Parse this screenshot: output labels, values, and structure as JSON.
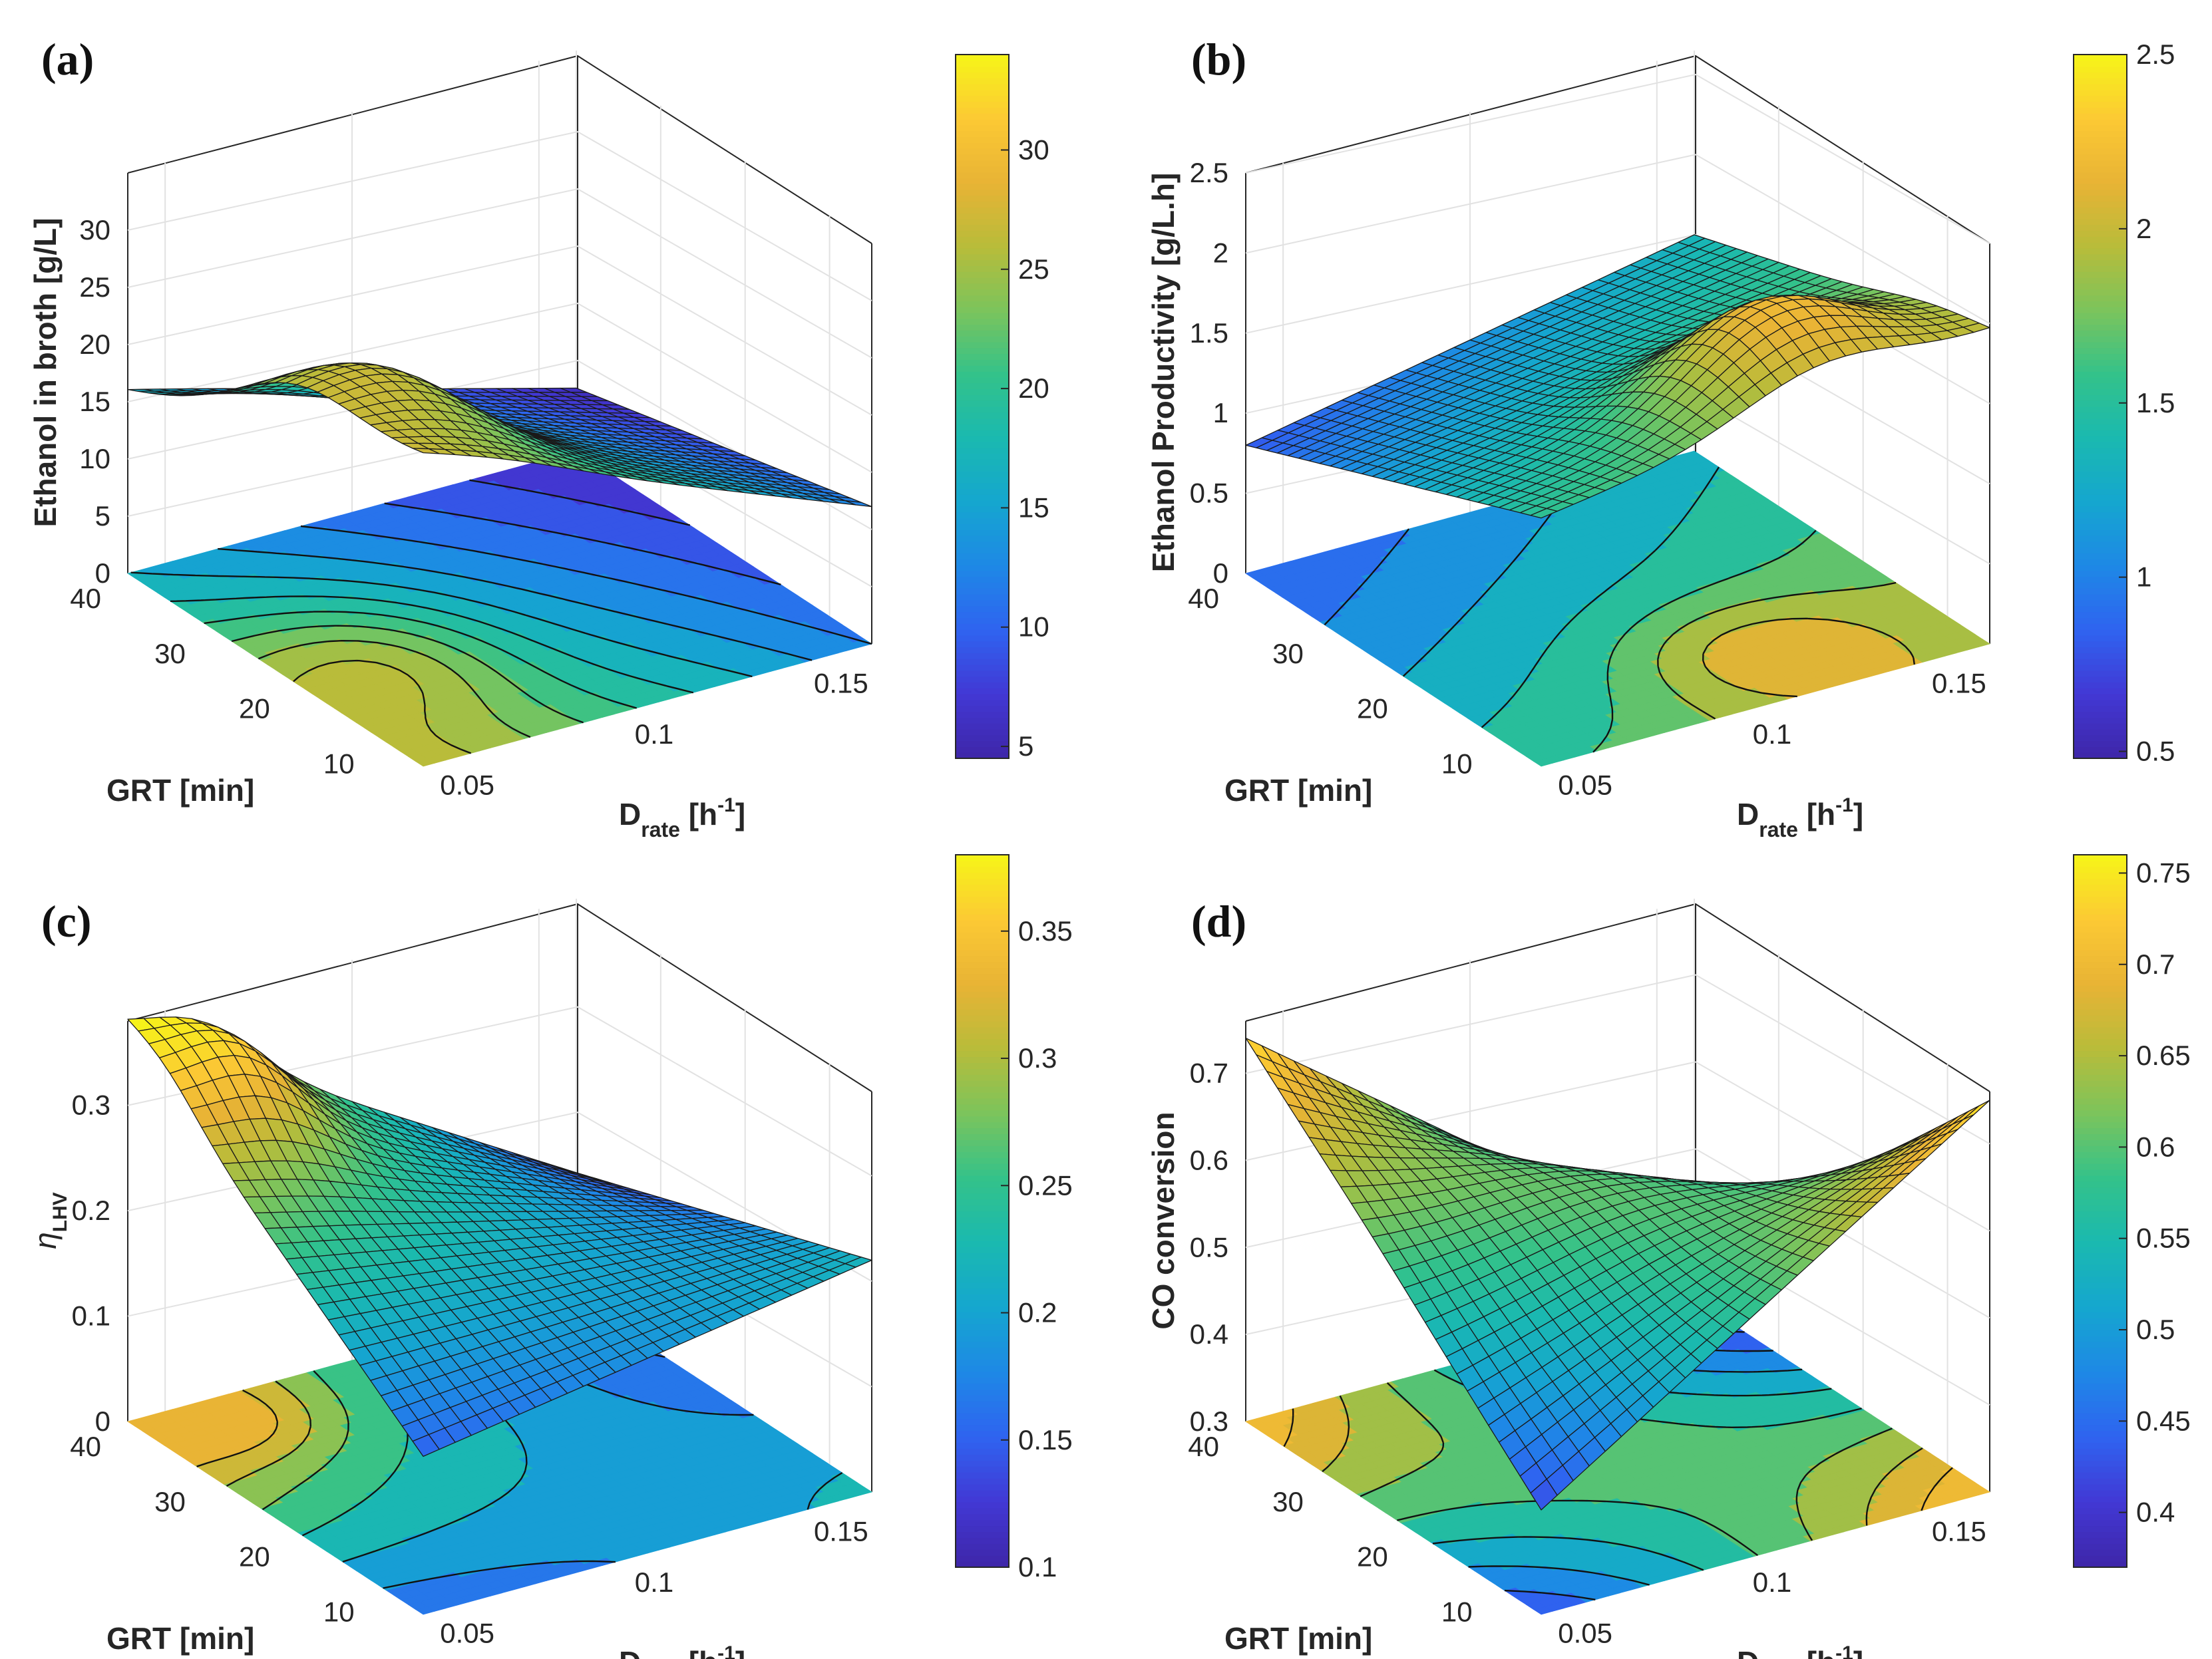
{
  "figure": "Four 3-D surface plots with contour projections and colorbars",
  "colormap": [
    "#3e26a8",
    "#4238d4",
    "#2f63f0",
    "#1e88e6",
    "#15a6cf",
    "#1ab9b0",
    "#33c28a",
    "#7bc45c",
    "#b8bc3a",
    "#e8b335",
    "#fcc934",
    "#f6f518"
  ],
  "chart_data": [
    {
      "panel": "(a)",
      "type": "surface",
      "zlabel": "Ethanol in broth  [g/L]",
      "xlabel": "D",
      "xlabel_sub": "rate",
      "xlabel_unit_open": " [h",
      "xlabel_unit_exp": "-1",
      "xlabel_unit_close": "]",
      "ylabel": "GRT [min]",
      "x_ticks": [
        "0.05",
        "0.1",
        "0.15"
      ],
      "y_ticks": [
        "10",
        "20",
        "30",
        "40"
      ],
      "z_ticks": [
        "0",
        "5",
        "10",
        "15",
        "20",
        "25",
        "30"
      ],
      "zlim": [
        0,
        35
      ],
      "colorbar_ticks": [
        "5",
        "10",
        "15",
        "20",
        "25",
        "30"
      ],
      "colorbar_range": [
        4.5,
        34
      ],
      "x_range": [
        0.04,
        0.16
      ],
      "y_range": [
        5,
        40
      ],
      "corners": {
        "x_min_y_max": 16,
        "x_min_y_min": 27,
        "x_max_y_max": 5.5,
        "x_max_y_min": 12
      },
      "peak": {
        "x": 0.06,
        "y": 20,
        "amplitude": 6,
        "width_x": 0.03,
        "width_y": 10
      },
      "contour_levels": [
        6,
        8,
        10,
        12,
        14,
        16,
        18,
        20,
        22,
        24,
        26
      ]
    },
    {
      "panel": "(b)",
      "type": "surface",
      "zlabel": "Ethanol Productivity [g/L.h]",
      "xlabel": "D",
      "xlabel_sub": "rate",
      "xlabel_unit_open": " [h",
      "xlabel_unit_exp": "-1",
      "xlabel_unit_close": "]",
      "ylabel": "GRT [min]",
      "x_ticks": [
        "0.05",
        "0.1",
        "0.15"
      ],
      "y_ticks": [
        "10",
        "20",
        "30",
        "40"
      ],
      "z_ticks": [
        "0",
        "0.5",
        "1",
        "1.5",
        "2",
        "2.5"
      ],
      "zlim": [
        0,
        2.5
      ],
      "colorbar_ticks": [
        "0.5",
        "1",
        "1.5",
        "2",
        "2.5"
      ],
      "colorbar_range": [
        0.48,
        2.5
      ],
      "x_range": [
        0.04,
        0.16
      ],
      "y_range": [
        5,
        40
      ],
      "corners": {
        "x_min_y_max": 0.8,
        "x_min_y_min": 1.55,
        "x_max_y_max": 1.35,
        "x_max_y_min": 1.95
      },
      "peak": {
        "x": 0.115,
        "y": 12,
        "amplitude": 0.5,
        "width_x": 0.03,
        "width_y": 8
      },
      "contour_levels": [
        0.6,
        0.8,
        1.0,
        1.2,
        1.4,
        1.6,
        1.8,
        2.0,
        2.2,
        2.4
      ]
    },
    {
      "panel": "(c)",
      "type": "surface",
      "zlabel": "η",
      "zlabel_sub": "LHV",
      "xlabel": "D",
      "xlabel_sub": "rate",
      "xlabel_unit_open": " [h",
      "xlabel_unit_exp": "-1",
      "xlabel_unit_close": "]",
      "ylabel": "GRT [min]",
      "x_ticks": [
        "0.05",
        "0.1",
        "0.15"
      ],
      "y_ticks": [
        "10",
        "20",
        "30",
        "40"
      ],
      "z_ticks": [
        "0",
        "0.1",
        "0.2",
        "0.3"
      ],
      "zlim": [
        0,
        0.38
      ],
      "colorbar_ticks": [
        "0.1",
        "0.15",
        "0.2",
        "0.25",
        "0.3",
        "0.35"
      ],
      "colorbar_range": [
        0.1,
        0.38
      ],
      "x_range": [
        0.04,
        0.16
      ],
      "y_range": [
        5,
        40
      ],
      "corners": {
        "x_min_y_max": 0.37,
        "x_min_y_min": 0.15,
        "x_max_y_max": 0.12,
        "x_max_y_min": 0.22
      },
      "peak": {
        "x": 0.06,
        "y": 36,
        "amplitude": 0.05,
        "width_x": 0.02,
        "width_y": 6
      },
      "contour_levels": [
        0.12,
        0.15,
        0.18,
        0.21,
        0.24,
        0.27,
        0.3,
        0.33
      ]
    },
    {
      "panel": "(d)",
      "type": "surface",
      "zlabel": "CO conversion",
      "xlabel": "D",
      "xlabel_sub": "rate",
      "xlabel_unit_open": " [h",
      "xlabel_unit_exp": "-1",
      "xlabel_unit_close": "]",
      "ylabel": "GRT [min]",
      "x_ticks": [
        "0.05",
        "0.1",
        "0.15"
      ],
      "y_ticks": [
        "10",
        "20",
        "30",
        "40"
      ],
      "z_ticks": [
        "0.3",
        "0.4",
        "0.5",
        "0.6",
        "0.7"
      ],
      "zlim": [
        0.3,
        0.76
      ],
      "colorbar_ticks": [
        "0.4",
        "0.45",
        "0.5",
        "0.55",
        "0.6",
        "0.65",
        "0.7",
        "0.75"
      ],
      "colorbar_range": [
        0.37,
        0.76
      ],
      "x_range": [
        0.04,
        0.16
      ],
      "y_range": [
        5,
        40
      ],
      "corners": {
        "x_min_y_max": 0.74,
        "x_min_y_min": 0.42,
        "x_max_y_max": 0.35,
        "x_max_y_min": 0.75
      },
      "peak": {
        "x": 0.1,
        "y": 25,
        "amplitude": 0.04,
        "width_x": 0.04,
        "width_y": 10
      },
      "contour_levels": [
        0.42,
        0.46,
        0.5,
        0.54,
        0.58,
        0.62,
        0.66,
        0.7
      ]
    }
  ]
}
